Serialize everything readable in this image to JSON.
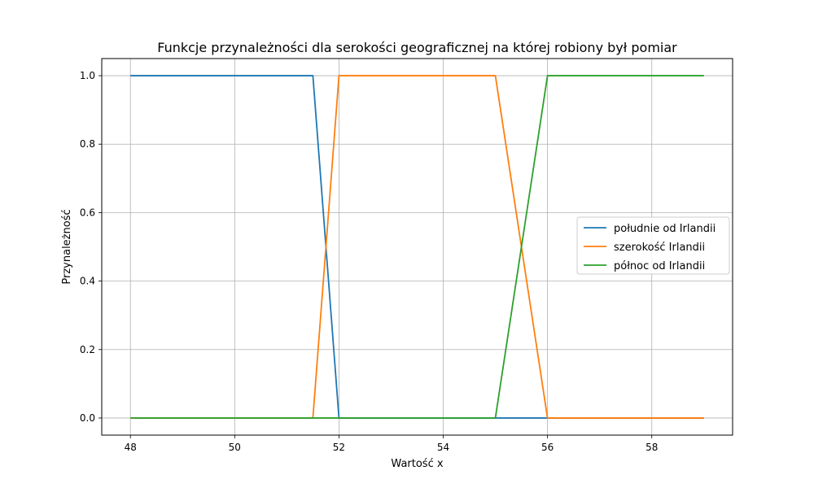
{
  "chart_data": {
    "type": "line",
    "title": "Funkcje przynależności dla serokości geograficznej na której robiony był pomiar",
    "xlabel": "Wartość x",
    "ylabel": "Przynależność",
    "xlim": [
      47.45,
      59.55
    ],
    "ylim": [
      -0.05,
      1.05
    ],
    "xticks": [
      "48",
      "50",
      "52",
      "54",
      "56",
      "58"
    ],
    "yticks": [
      "0.0",
      "0.2",
      "0.4",
      "0.6",
      "0.8",
      "1.0"
    ],
    "grid": true,
    "legend_position": "center-right",
    "series": [
      {
        "name": "południe od Irlandii",
        "color": "#1f77b4",
        "x": [
          48,
          51.5,
          52,
          59
        ],
        "y": [
          1,
          1,
          0,
          0
        ]
      },
      {
        "name": "szerokość Irlandii",
        "color": "#ff7f0e",
        "x": [
          48,
          51.5,
          52,
          55,
          56,
          59
        ],
        "y": [
          0,
          0,
          1,
          1,
          0,
          0
        ]
      },
      {
        "name": "północ od Irlandii",
        "color": "#2ca02c",
        "x": [
          48,
          55,
          56,
          59
        ],
        "y": [
          0,
          0,
          1,
          1
        ]
      }
    ]
  }
}
